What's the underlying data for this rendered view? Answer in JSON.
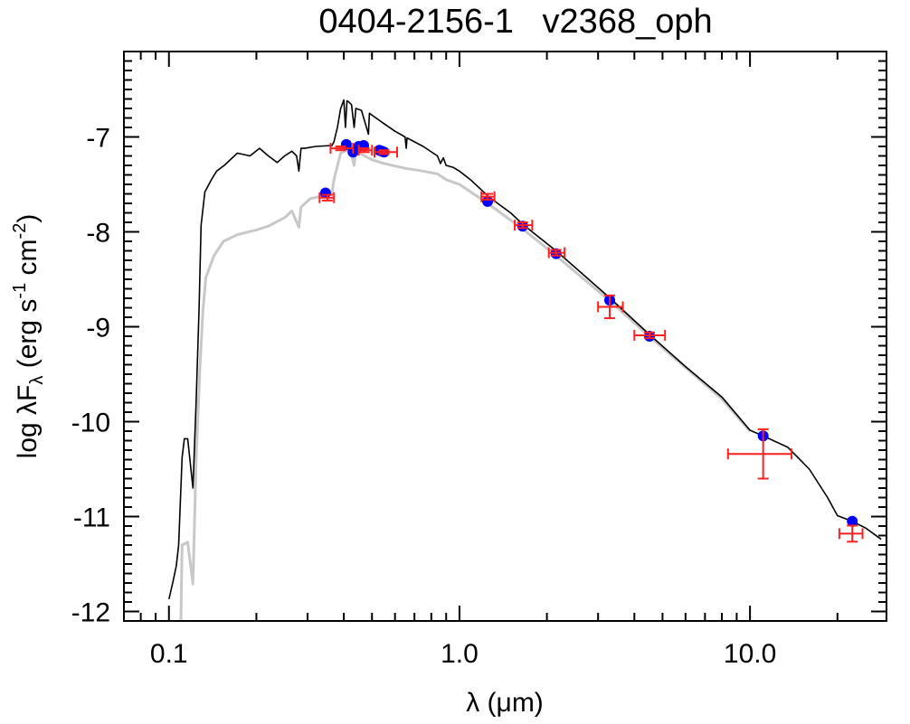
{
  "chart_data": {
    "type": "scatter",
    "title": "0404-2156-1   v2368_oph",
    "xlabel": {
      "main": "λ (μm)"
    },
    "ylabel": {
      "p1": "log λF",
      "sub": "λ",
      "p2": " (erg s",
      "sup1": "-1",
      "p3": " cm",
      "sup2": "-2",
      "p4": ")"
    },
    "xscale": "log",
    "xlim": [
      0.07,
      29.5
    ],
    "ylim": [
      -12.1,
      -6.1
    ],
    "x_ticks": [
      {
        "value": 0.1,
        "label": "0.1"
      },
      {
        "value": 1.0,
        "label": "1.0"
      },
      {
        "value": 10.0,
        "label": "10.0"
      }
    ],
    "y_ticks": [
      {
        "value": -12,
        "label": "-12"
      },
      {
        "value": -11,
        "label": "-11"
      },
      {
        "value": -10,
        "label": "-10"
      },
      {
        "value": -9,
        "label": "-9"
      },
      {
        "value": -8,
        "label": "-8"
      },
      {
        "value": -7,
        "label": "-7"
      }
    ],
    "grid": false,
    "colors": {
      "model": "#000000",
      "model_reddened": "#c8c8c8",
      "model_points": "#0000ff",
      "observed": "#ff2020"
    },
    "series": [
      {
        "type": "line",
        "role": "model",
        "x": [
          0.1,
          0.103,
          0.106,
          0.108,
          0.111,
          0.113,
          0.116,
          0.121,
          0.124,
          0.127,
          0.129,
          0.133,
          0.14,
          0.146,
          0.155,
          0.172,
          0.19,
          0.205,
          0.22,
          0.236,
          0.25,
          0.265,
          0.275,
          0.28,
          0.285,
          0.293,
          0.32,
          0.364,
          0.37,
          0.38,
          0.39,
          0.4,
          0.405,
          0.41,
          0.415,
          0.425,
          0.434,
          0.44,
          0.46,
          0.486,
          0.49,
          0.5,
          0.55,
          0.6,
          0.65,
          0.656,
          0.66,
          0.75,
          0.84,
          0.86,
          0.88,
          0.9,
          0.95,
          1.0,
          1.1,
          1.26,
          1.5,
          1.65,
          2.15,
          2.6,
          3.3,
          4.5,
          6,
          8,
          10,
          11.1,
          13.5,
          16,
          18.5,
          20,
          22.5,
          25,
          28.3
        ],
        "y": [
          -11.87,
          -11.7,
          -11.52,
          -11.3,
          -10.38,
          -10.18,
          -10.18,
          -10.7,
          -9.8,
          -8.8,
          -7.93,
          -7.58,
          -7.45,
          -7.36,
          -7.3,
          -7.17,
          -7.2,
          -7.12,
          -7.2,
          -7.27,
          -7.2,
          -7.15,
          -7.2,
          -7.36,
          -7.12,
          -7.12,
          -7.1,
          -7.09,
          -7.05,
          -6.9,
          -6.7,
          -6.61,
          -6.9,
          -6.62,
          -6.63,
          -6.66,
          -6.9,
          -6.7,
          -6.72,
          -6.97,
          -6.75,
          -6.77,
          -6.86,
          -6.94,
          -7.0,
          -7.12,
          -7.01,
          -7.1,
          -7.2,
          -7.28,
          -7.22,
          -7.3,
          -7.32,
          -7.36,
          -7.46,
          -7.63,
          -7.8,
          -7.92,
          -8.2,
          -8.42,
          -8.7,
          -9.08,
          -9.42,
          -9.74,
          -10.09,
          -10.15,
          -10.27,
          -10.5,
          -10.8,
          -10.99,
          -11.05,
          -11.12,
          -11.24
        ]
      },
      {
        "type": "line",
        "role": "model_reddened",
        "x": [
          0.11,
          0.111,
          0.116,
          0.121,
          0.124,
          0.128,
          0.131,
          0.134,
          0.143,
          0.154,
          0.172,
          0.2,
          0.22,
          0.25,
          0.265,
          0.28,
          0.285,
          0.306,
          0.34,
          0.364,
          0.37,
          0.39,
          0.41,
          0.42,
          0.434,
          0.44,
          0.5,
          0.55,
          0.65,
          0.75,
          0.84,
          0.9,
          1.0,
          1.25,
          1.65,
          2.15,
          3.3,
          4.5,
          8,
          10
        ],
        "y": [
          -12.1,
          -11.3,
          -11.27,
          -11.71,
          -10.4,
          -9.4,
          -8.82,
          -8.48,
          -8.25,
          -8.1,
          -8.03,
          -7.98,
          -7.94,
          -7.85,
          -7.78,
          -7.95,
          -7.74,
          -7.65,
          -7.62,
          -7.59,
          -7.45,
          -7.17,
          -7.14,
          -7.13,
          -7.3,
          -7.15,
          -7.24,
          -7.28,
          -7.33,
          -7.36,
          -7.39,
          -7.45,
          -7.5,
          -7.7,
          -7.97,
          -8.25,
          -8.73,
          -9.1,
          -9.76,
          -10.1
        ]
      },
      {
        "type": "scatter",
        "role": "model_points",
        "x": [
          0.346,
          0.408,
          0.43,
          0.45,
          0.468,
          0.53,
          0.54,
          0.55,
          1.25,
          1.65,
          2.15,
          3.29,
          4.51,
          11.1,
          22.5
        ],
        "y": [
          -7.59,
          -7.08,
          -7.16,
          -7.1,
          -7.09,
          -7.14,
          -7.15,
          -7.16,
          -7.68,
          -7.94,
          -8.23,
          -8.72,
          -9.1,
          -10.15,
          -11.05
        ]
      },
      {
        "type": "errorbar",
        "role": "observed",
        "x": [
          0.351,
          0.39,
          0.47,
          0.55,
          1.25,
          1.65,
          2.15,
          3.29,
          4.51,
          11.1,
          22.5
        ],
        "y": [
          -7.64,
          -7.12,
          -7.14,
          -7.16,
          -7.63,
          -7.93,
          -8.22,
          -8.79,
          -9.09,
          -10.34,
          -11.18
        ],
        "xerr_low": [
          0.33,
          0.36,
          0.45,
          0.51,
          1.19,
          1.55,
          2.03,
          3.0,
          4.0,
          8.4,
          20.3
        ],
        "xerr_high": [
          0.37,
          0.43,
          0.5,
          0.61,
          1.32,
          1.78,
          2.3,
          3.65,
          5.1,
          13.9,
          24.4
        ],
        "yerr": [
          0.03,
          0.02,
          0.02,
          0.02,
          0.03,
          0.03,
          0.03,
          0.12,
          0.03,
          0.26,
          0.085
        ]
      }
    ]
  }
}
